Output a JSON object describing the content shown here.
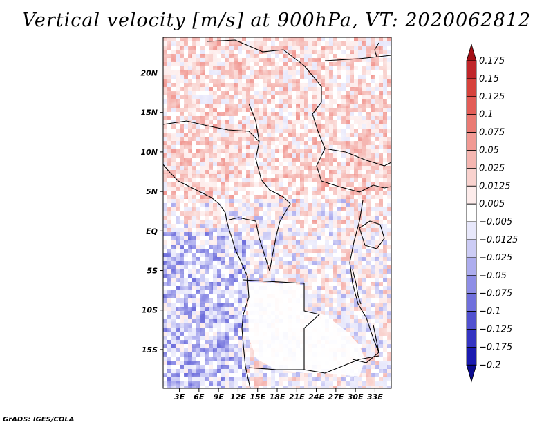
{
  "title": "Vertical velocity [m/s] at 900hPa, VT: 2020062812",
  "footer": "GrADS: IGES/COLA",
  "map": {
    "lon_labels": [
      "3E",
      "6E",
      "9E",
      "12E",
      "15E",
      "18E",
      "21E",
      "24E",
      "27E",
      "30E",
      "33E"
    ],
    "lon_values": [
      3,
      6,
      9,
      12,
      15,
      18,
      21,
      24,
      27,
      30,
      33
    ],
    "lat_labels": [
      "20N",
      "15N",
      "10N",
      "5N",
      "EQ",
      "5S",
      "10S",
      "15S"
    ],
    "lat_values": [
      20,
      15,
      10,
      5,
      0,
      -5,
      -10,
      -15
    ],
    "lon_range": [
      0.5,
      35.5
    ],
    "lat_range": [
      -19.9,
      24.5
    ]
  },
  "colorbar": {
    "labels": [
      "0.175",
      "0.15",
      "0.125",
      "0.1",
      "0.075",
      "0.05",
      "0.025",
      "0.0125",
      "0.005",
      "−0.005",
      "−0.0125",
      "−0.025",
      "−0.05",
      "−0.075",
      "−0.1",
      "−0.125",
      "−0.175",
      "−0.2"
    ],
    "colors": [
      "#a50f15",
      "#c0262a",
      "#d6423c",
      "#e35d57",
      "#ea7b74",
      "#f19a94",
      "#f5b6b1",
      "#f9d2ce",
      "#fdeceb",
      "#ffffff",
      "#e8e8fb",
      "#ccccf5",
      "#adadee",
      "#8e8ee6",
      "#7070dc",
      "#5151d0",
      "#3434c2",
      "#1a1ab0",
      "#0b0b8f"
    ]
  }
}
